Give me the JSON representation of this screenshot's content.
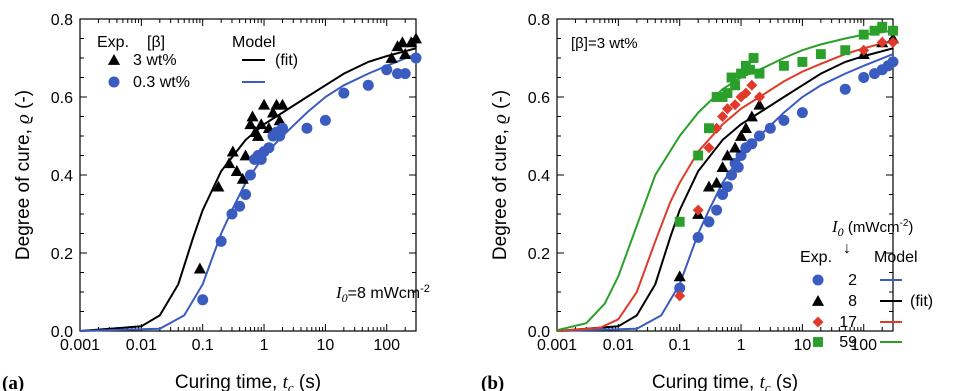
{
  "chart_data": [
    {
      "panel": "(a)",
      "type": "scatter",
      "xscale": "log",
      "xlim": [
        0.001,
        300
      ],
      "ylim": [
        0,
        0.8
      ],
      "xlabel": "Curing time, ",
      "xlabel_var": "t",
      "xlabel_sub": "c",
      "xlabel_unit": " (s)",
      "ylabel": "Degree of cure, ",
      "ylabel_var": "ϱ",
      "ylabel_unit": " (-)",
      "xticks": [
        "0.001",
        "0.01",
        "0.1",
        "1",
        "10",
        "100"
      ],
      "yticks": [
        "0.0",
        "0.2",
        "0.4",
        "0.6",
        "0.8"
      ],
      "legend": {
        "exp_header": "Exp.",
        "beta_header": "[β]",
        "model_header": "Model",
        "fit_label": "(fit)"
      },
      "annotation": {
        "var": "I",
        "sub": "0",
        "text": "=8 mWcm",
        "sup": "-2"
      },
      "series": [
        {
          "name": "3 wt%",
          "marker": "triangle",
          "color": "#000000",
          "points": [
            [
              0.09,
              0.16
            ],
            [
              0.18,
              0.37
            ],
            [
              0.27,
              0.43
            ],
            [
              0.31,
              0.46
            ],
            [
              0.36,
              0.41
            ],
            [
              0.45,
              0.39
            ],
            [
              0.5,
              0.45
            ],
            [
              0.6,
              0.53
            ],
            [
              0.65,
              0.55
            ],
            [
              0.72,
              0.51
            ],
            [
              0.8,
              0.5
            ],
            [
              0.9,
              0.53
            ],
            [
              1.0,
              0.58
            ],
            [
              1.2,
              0.52
            ],
            [
              1.4,
              0.56
            ],
            [
              1.6,
              0.58
            ],
            [
              1.8,
              0.54
            ],
            [
              2.0,
              0.58
            ],
            [
              120,
              0.7
            ],
            [
              150,
              0.73
            ],
            [
              180,
              0.74
            ],
            [
              200,
              0.71
            ],
            [
              250,
              0.74
            ],
            [
              300,
              0.75
            ]
          ]
        },
        {
          "name": "0.3 wt%",
          "marker": "circle",
          "color": "#3a5bbf",
          "points": [
            [
              0.1,
              0.08
            ],
            [
              0.2,
              0.23
            ],
            [
              0.3,
              0.3
            ],
            [
              0.4,
              0.32
            ],
            [
              0.5,
              0.35
            ],
            [
              0.6,
              0.4
            ],
            [
              0.7,
              0.44
            ],
            [
              0.8,
              0.45
            ],
            [
              0.9,
              0.44
            ],
            [
              1.0,
              0.46
            ],
            [
              1.2,
              0.47
            ],
            [
              1.4,
              0.5
            ],
            [
              1.6,
              0.51
            ],
            [
              1.8,
              0.5
            ],
            [
              2.0,
              0.52
            ],
            [
              5.0,
              0.52
            ],
            [
              10,
              0.54
            ],
            [
              20,
              0.61
            ],
            [
              50,
              0.63
            ],
            [
              100,
              0.67
            ],
            [
              150,
              0.66
            ],
            [
              200,
              0.66
            ],
            [
              300,
              0.7
            ]
          ]
        }
      ],
      "model_curves": [
        {
          "color": "#000000",
          "points": [
            [
              0.001,
              0.0
            ],
            [
              0.01,
              0.012
            ],
            [
              0.02,
              0.04
            ],
            [
              0.04,
              0.12
            ],
            [
              0.07,
              0.24
            ],
            [
              0.1,
              0.31
            ],
            [
              0.2,
              0.41
            ],
            [
              0.5,
              0.49
            ],
            [
              1,
              0.53
            ],
            [
              2,
              0.56
            ],
            [
              5,
              0.6
            ],
            [
              10,
              0.63
            ],
            [
              20,
              0.66
            ],
            [
              50,
              0.69
            ],
            [
              100,
              0.705
            ],
            [
              300,
              0.725
            ]
          ]
        },
        {
          "color": "#3a5bbf",
          "points": [
            [
              0.001,
              0.0
            ],
            [
              0.02,
              0.006
            ],
            [
              0.05,
              0.04
            ],
            [
              0.1,
              0.12
            ],
            [
              0.2,
              0.25
            ],
            [
              0.3,
              0.31
            ],
            [
              0.5,
              0.38
            ],
            [
              1,
              0.45
            ],
            [
              2,
              0.5
            ],
            [
              5,
              0.56
            ],
            [
              10,
              0.6
            ],
            [
              20,
              0.63
            ],
            [
              50,
              0.66
            ],
            [
              100,
              0.68
            ],
            [
              300,
              0.71
            ]
          ]
        }
      ]
    },
    {
      "panel": "(b)",
      "type": "scatter",
      "xscale": "log",
      "xlim": [
        0.001,
        300
      ],
      "ylim": [
        0,
        0.8
      ],
      "xlabel": "Curing time, ",
      "xlabel_var": "t",
      "xlabel_sub": "c",
      "xlabel_unit": " (s)",
      "ylabel": "Degree of cure, ",
      "ylabel_var": "ϱ",
      "ylabel_unit": " (-)",
      "xticks": [
        "0.001",
        "0.01",
        "0.1",
        "1",
        "10",
        "100"
      ],
      "yticks": [
        "0.0",
        "0.2",
        "0.4",
        "0.6",
        "0.8"
      ],
      "condition": "[β]=3 wt%",
      "legend": {
        "title_var": "I",
        "title_sub": "0",
        "title_unit": " (mWcm",
        "title_sup": "-2",
        "title_close": ")",
        "arrow": "↓",
        "exp_header": "Exp.",
        "model_header": "Model",
        "fit_label": "(fit)"
      },
      "series": [
        {
          "name": "2",
          "marker": "circle",
          "color": "#3a5bbf",
          "points": [
            [
              0.1,
              0.11
            ],
            [
              0.2,
              0.24
            ],
            [
              0.3,
              0.28
            ],
            [
              0.4,
              0.31
            ],
            [
              0.5,
              0.35
            ],
            [
              0.6,
              0.37
            ],
            [
              0.7,
              0.4
            ],
            [
              0.8,
              0.43
            ],
            [
              0.9,
              0.42
            ],
            [
              1.0,
              0.45
            ],
            [
              1.2,
              0.47
            ],
            [
              1.5,
              0.48
            ],
            [
              2.0,
              0.5
            ],
            [
              3.0,
              0.52
            ],
            [
              5,
              0.54
            ],
            [
              10,
              0.56
            ],
            [
              50,
              0.62
            ],
            [
              100,
              0.65
            ],
            [
              150,
              0.66
            ],
            [
              200,
              0.67
            ],
            [
              250,
              0.68
            ],
            [
              300,
              0.69
            ]
          ]
        },
        {
          "name": "8",
          "marker": "triangle",
          "color": "#000000",
          "points": [
            [
              0.1,
              0.14
            ],
            [
              0.2,
              0.3
            ],
            [
              0.3,
              0.37
            ],
            [
              0.4,
              0.38
            ],
            [
              0.5,
              0.42
            ],
            [
              0.6,
              0.45
            ],
            [
              0.8,
              0.47
            ],
            [
              1.0,
              0.5
            ],
            [
              1.2,
              0.52
            ],
            [
              1.5,
              0.55
            ],
            [
              2,
              0.58
            ],
            [
              100,
              0.71
            ],
            [
              200,
              0.74
            ],
            [
              300,
              0.75
            ]
          ]
        },
        {
          "name": "17",
          "marker": "diamond",
          "color": "#e03a2a",
          "points": [
            [
              0.1,
              0.09
            ],
            [
              0.2,
              0.31
            ],
            [
              0.3,
              0.47
            ],
            [
              0.4,
              0.52
            ],
            [
              0.5,
              0.55
            ],
            [
              0.6,
              0.57
            ],
            [
              0.8,
              0.58
            ],
            [
              1.0,
              0.6
            ],
            [
              1.2,
              0.61
            ],
            [
              1.5,
              0.63
            ],
            [
              2.0,
              0.6
            ],
            [
              100,
              0.72
            ],
            [
              200,
              0.74
            ],
            [
              300,
              0.74
            ]
          ]
        },
        {
          "name": "59",
          "marker": "square",
          "color": "#2aa02a",
          "points": [
            [
              0.1,
              0.28
            ],
            [
              0.2,
              0.45
            ],
            [
              0.3,
              0.52
            ],
            [
              0.4,
              0.6
            ],
            [
              0.5,
              0.6
            ],
            [
              0.6,
              0.61
            ],
            [
              0.7,
              0.65
            ],
            [
              0.8,
              0.63
            ],
            [
              1.0,
              0.66
            ],
            [
              1.2,
              0.68
            ],
            [
              1.4,
              0.67
            ],
            [
              1.6,
              0.7
            ],
            [
              2.0,
              0.66
            ],
            [
              5,
              0.68
            ],
            [
              10,
              0.69
            ],
            [
              20,
              0.71
            ],
            [
              50,
              0.72
            ],
            [
              100,
              0.76
            ],
            [
              150,
              0.77
            ],
            [
              200,
              0.78
            ],
            [
              300,
              0.77
            ]
          ]
        }
      ],
      "model_curves": [
        {
          "color": "#3a5bbf",
          "points": [
            [
              0.001,
              0.0
            ],
            [
              0.02,
              0.006
            ],
            [
              0.05,
              0.04
            ],
            [
              0.1,
              0.12
            ],
            [
              0.2,
              0.25
            ],
            [
              0.3,
              0.31
            ],
            [
              0.5,
              0.38
            ],
            [
              1,
              0.45
            ],
            [
              2,
              0.5
            ],
            [
              5,
              0.56
            ],
            [
              10,
              0.6
            ],
            [
              20,
              0.63
            ],
            [
              50,
              0.66
            ],
            [
              100,
              0.68
            ],
            [
              300,
              0.71
            ]
          ]
        },
        {
          "color": "#000000",
          "points": [
            [
              0.001,
              0.0
            ],
            [
              0.01,
              0.012
            ],
            [
              0.02,
              0.04
            ],
            [
              0.04,
              0.12
            ],
            [
              0.07,
              0.24
            ],
            [
              0.1,
              0.31
            ],
            [
              0.2,
              0.41
            ],
            [
              0.5,
              0.49
            ],
            [
              1,
              0.53
            ],
            [
              2,
              0.56
            ],
            [
              5,
              0.6
            ],
            [
              10,
              0.63
            ],
            [
              20,
              0.66
            ],
            [
              50,
              0.69
            ],
            [
              100,
              0.705
            ],
            [
              300,
              0.725
            ]
          ]
        },
        {
          "color": "#e03a2a",
          "points": [
            [
              0.001,
              0.0
            ],
            [
              0.005,
              0.008
            ],
            [
              0.01,
              0.03
            ],
            [
              0.02,
              0.1
            ],
            [
              0.04,
              0.23
            ],
            [
              0.07,
              0.33
            ],
            [
              0.1,
              0.38
            ],
            [
              0.2,
              0.46
            ],
            [
              0.5,
              0.53
            ],
            [
              1,
              0.57
            ],
            [
              2,
              0.6
            ],
            [
              5,
              0.64
            ],
            [
              10,
              0.665
            ],
            [
              20,
              0.685
            ],
            [
              50,
              0.71
            ],
            [
              100,
              0.725
            ],
            [
              300,
              0.745
            ]
          ]
        },
        {
          "color": "#2aa02a",
          "points": [
            [
              0.001,
              0.002
            ],
            [
              0.003,
              0.02
            ],
            [
              0.006,
              0.07
            ],
            [
              0.01,
              0.14
            ],
            [
              0.02,
              0.27
            ],
            [
              0.04,
              0.4
            ],
            [
              0.1,
              0.5
            ],
            [
              0.2,
              0.56
            ],
            [
              0.5,
              0.62
            ],
            [
              1,
              0.65
            ],
            [
              2,
              0.67
            ],
            [
              5,
              0.7
            ],
            [
              10,
              0.72
            ],
            [
              20,
              0.735
            ],
            [
              50,
              0.75
            ],
            [
              100,
              0.76
            ],
            [
              300,
              0.77
            ]
          ]
        }
      ]
    }
  ]
}
